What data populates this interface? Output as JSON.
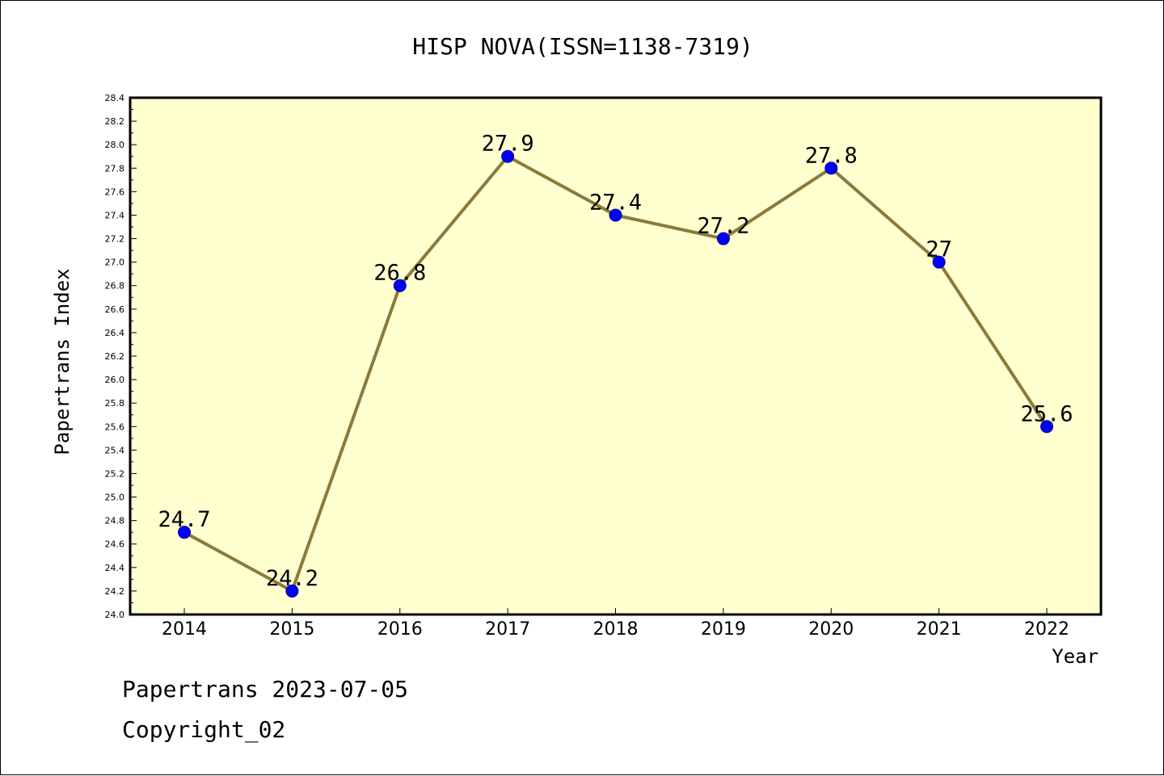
{
  "chart_data": {
    "type": "line",
    "title": "HISP NOVA(ISSN=1138-7319)",
    "xlabel": "Year",
    "ylabel": "Papertrans Index",
    "categories": [
      "2014",
      "2015",
      "2016",
      "2017",
      "2018",
      "2019",
      "2020",
      "2021",
      "2022"
    ],
    "series": [
      {
        "values": [
          24.7,
          24.2,
          26.8,
          27.9,
          27.4,
          27.2,
          27.8,
          27.0,
          25.6
        ],
        "data_labels": [
          "24.7",
          "24.2",
          "26.8",
          "27.9",
          "27.4",
          "27.2",
          "27.8",
          "27",
          "25.6"
        ]
      }
    ],
    "ylim": [
      24.0,
      28.4
    ],
    "yticks": [
      "24.0",
      "24.2",
      "24.4",
      "24.6",
      "24.8",
      "25.0",
      "25.2",
      "25.4",
      "25.6",
      "25.8",
      "26.0",
      "26.2",
      "26.4",
      "26.6",
      "26.8",
      "27.0",
      "27.2",
      "27.4",
      "27.6",
      "27.8",
      "28.0",
      "28.2",
      "28.4"
    ],
    "grid": false,
    "colors": {
      "plot_background": "#ffffd0",
      "line": "#8b7a3a",
      "marker": "#0000ff"
    }
  },
  "footer": {
    "line1": "Papertrans 2023-07-05",
    "line2": "Copyright_02"
  }
}
